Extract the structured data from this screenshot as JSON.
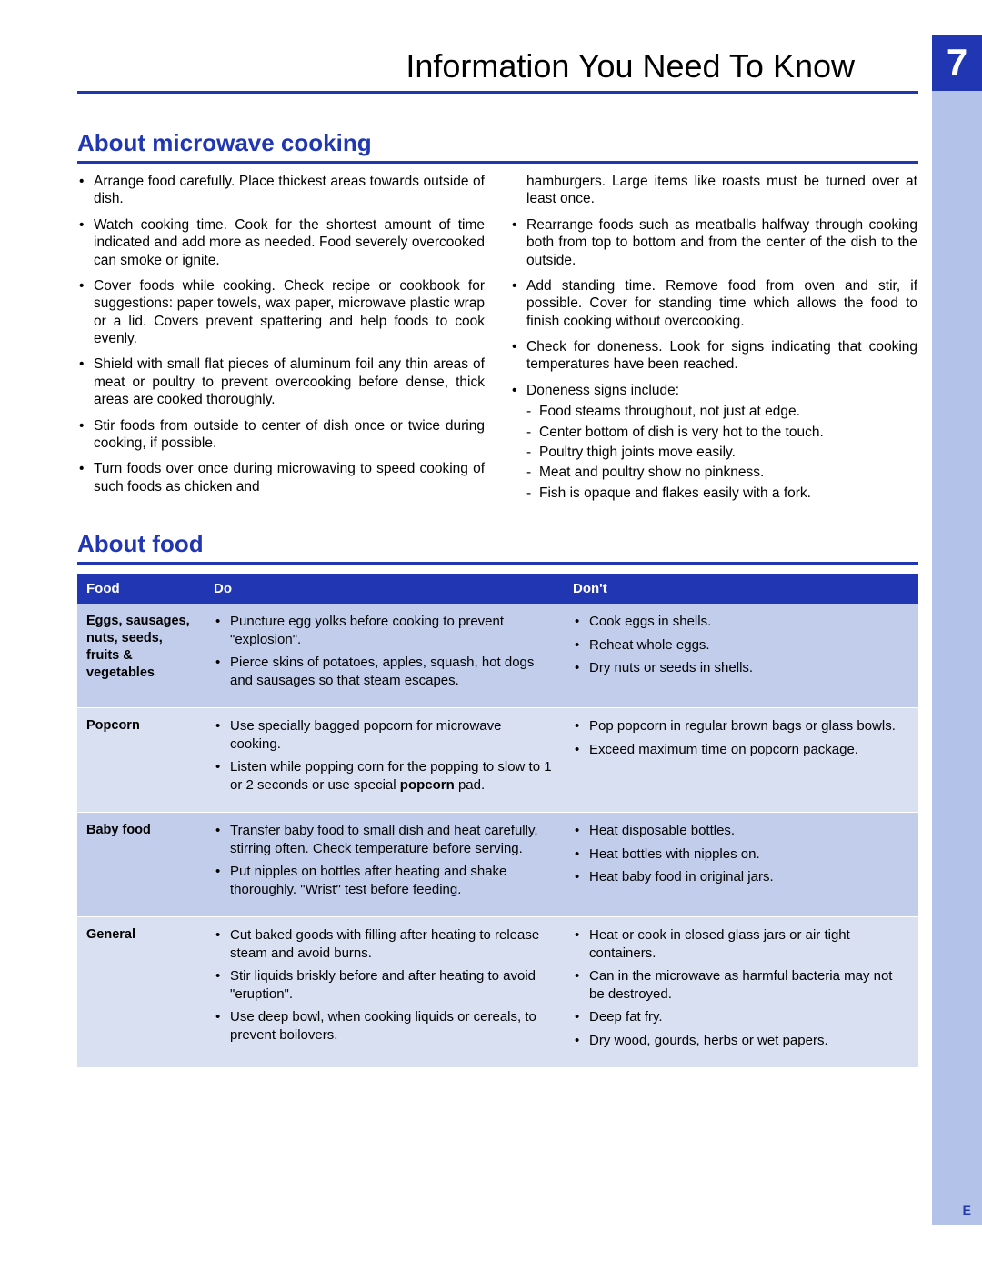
{
  "page": {
    "title": "Information You Need To Know",
    "number": "7",
    "footer": "E"
  },
  "section1": {
    "title": "About microwave cooking",
    "left": [
      "Arrange food carefully. Place thickest areas towards outside of dish.",
      "Watch cooking time. Cook for the shortest amount of time indicated and add more as needed. Food severely overcooked can smoke or ignite.",
      "Cover foods while cooking. Check recipe or cookbook for suggestions: paper towels, wax paper, microwave plastic wrap or a lid. Covers prevent spattering and help foods to cook evenly.",
      "Shield with small flat pieces of aluminum foil any thin areas of meat or poultry to prevent overcooking before dense, thick areas are cooked thoroughly.",
      "Stir foods from outside to center of dish once or twice during cooking, if possible.",
      "Turn foods over once during microwaving to speed cooking of such foods as chicken and"
    ],
    "right_cont": "hamburgers. Large items like roasts must be turned over at least once.",
    "right": [
      "Rearrange foods such as meatballs halfway through cooking both from top to bottom and from the center of the dish to the outside.",
      "Add standing time. Remove food from oven and stir, if possible. Cover for standing time which allows the food to finish cooking without overcooking.",
      "Check for doneness. Look for signs indicating that cooking temperatures have been reached."
    ],
    "doneness_lead": "Doneness signs include:",
    "doneness": [
      "Food steams throughout, not just at edge.",
      "Center bottom of dish is very hot to the touch.",
      "Poultry thigh joints move easily.",
      "Meat and poultry show no pinkness.",
      "Fish is opaque and flakes easily with a fork."
    ]
  },
  "section2": {
    "title": "About food",
    "columns": {
      "c1": "Food",
      "c2": "Do",
      "c3": "Don't"
    },
    "rows": [
      {
        "food": "Eggs, sausages, nuts, seeds, fruits & vegetables",
        "do": [
          "Puncture egg yolks before cooking to prevent \"explosion\".",
          "Pierce skins of potatoes, apples, squash, hot dogs and sausages so that steam escapes."
        ],
        "dont": [
          "Cook eggs in shells.",
          "Reheat whole eggs.",
          "Dry nuts or seeds in shells."
        ]
      },
      {
        "food": "Popcorn",
        "do_html": [
          "Use specially bagged popcorn for microwave cooking.",
          "Listen while popping corn for the popping to slow to 1 or 2 seconds or use special <b>popcorn</b> pad."
        ],
        "dont": [
          "Pop popcorn in regular brown bags or glass bowls.",
          "Exceed maximum time on popcorn package."
        ]
      },
      {
        "food": "Baby food",
        "do": [
          "Transfer baby food to small dish and heat carefully, stirring often. Check temperature before serving.",
          "Put nipples on bottles after heating and shake thoroughly. \"Wrist\" test before feeding."
        ],
        "dont": [
          "Heat disposable bottles.",
          "Heat bottles with nipples on.",
          "Heat baby food in original jars."
        ]
      },
      {
        "food": "General",
        "do": [
          "Cut baked goods with filling after heating to release steam and avoid burns.",
          "Stir liquids briskly before and after heating to avoid \"eruption\".",
          "Use deep bowl, when cooking liquids or cereals, to prevent boilovers."
        ],
        "dont": [
          "Heat or cook in closed glass jars or air tight containers.",
          "Can in the microwave as harmful bacteria may not be destroyed.",
          "Deep fat fry.",
          "Dry wood, gourds, herbs or wet papers."
        ]
      }
    ]
  },
  "colors": {
    "accent": "#2036b2",
    "sidebar": "#b3c2e8",
    "row_odd": "#c1cdeb",
    "row_even": "#d9e0f2"
  }
}
